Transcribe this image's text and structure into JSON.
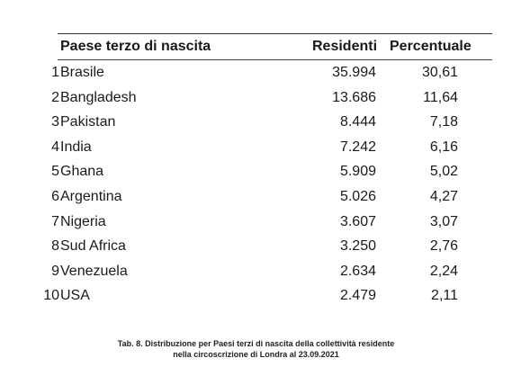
{
  "table": {
    "headers": {
      "country": "Paese terzo di nascita",
      "residents": "Residenti",
      "percentage": "Percentuale"
    },
    "rows": [
      {
        "rank": "1",
        "country": "Brasile",
        "residents": "35.994",
        "percentage": "30,61"
      },
      {
        "rank": "2",
        "country": "Bangladesh",
        "residents": "13.686",
        "percentage": "11,64"
      },
      {
        "rank": "3",
        "country": "Pakistan",
        "residents": "8.444",
        "percentage": "7,18"
      },
      {
        "rank": "4",
        "country": "India",
        "residents": "7.242",
        "percentage": "6,16"
      },
      {
        "rank": "5",
        "country": "Ghana",
        "residents": "5.909",
        "percentage": "5,02"
      },
      {
        "rank": "6",
        "country": "Argentina",
        "residents": "5.026",
        "percentage": "4,27"
      },
      {
        "rank": "7",
        "country": "Nigeria",
        "residents": "3.607",
        "percentage": "3,07"
      },
      {
        "rank": "8",
        "country": "Sud Africa",
        "residents": "3.250",
        "percentage": "2,76"
      },
      {
        "rank": "9",
        "country": "Venezuela",
        "residents": "2.634",
        "percentage": "2,24"
      },
      {
        "rank": "10",
        "country": "USA",
        "residents": "2.479",
        "percentage": "2,11"
      }
    ]
  },
  "caption": {
    "line1": "Tab. 8. Distribuzione per Paesi terzi di nascita della collettività residente",
    "line2": "nella circoscrizione di Londra al 23.09.2021"
  }
}
